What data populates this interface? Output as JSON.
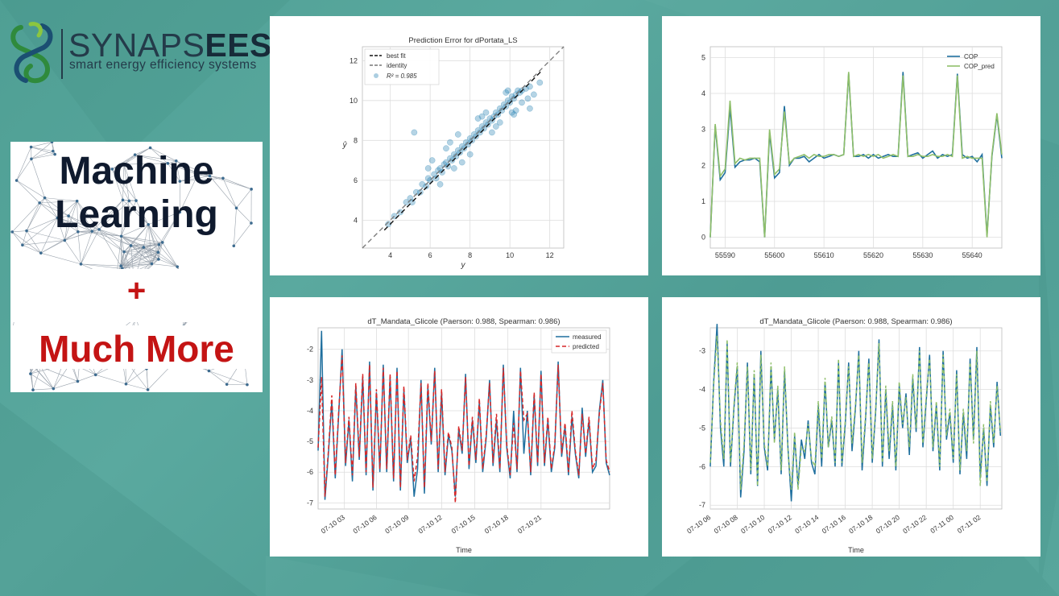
{
  "logo": {
    "brand_light": "SYNAPS",
    "brand_bold": "EES",
    "tagline": "smart energy efficiency systems"
  },
  "promo": {
    "line1": "Machine",
    "line2": "Learning",
    "plus": "+",
    "line3": "Much More"
  },
  "colors": {
    "background": "#55a39a",
    "measured": "#1f6f9e",
    "predicted": "#d62728",
    "pred_green": "#8fbf6a",
    "scatter": "#2c85b4",
    "promo_red": "#c41414"
  },
  "chart_data": [
    {
      "type": "scatter",
      "title": "Prediction Error for dPortata_LS",
      "xlabel": "y",
      "ylabel": "ŷ",
      "xlim": [
        2.6,
        12.7
      ],
      "ylim": [
        2.6,
        12.7
      ],
      "xticks": [
        "4",
        "6",
        "8",
        "10",
        "12"
      ],
      "yticks": [
        "4",
        "6",
        "8",
        "10",
        "12"
      ],
      "legend": [
        "best fit",
        "identity",
        "R² = 0.985"
      ],
      "legend_position": "top-left",
      "r2": 0.985,
      "grid": true,
      "x": [
        3.9,
        4.2,
        4.5,
        4.8,
        5.0,
        5.1,
        5.3,
        5.5,
        5.6,
        5.8,
        5.9,
        6.0,
        6.2,
        6.3,
        6.4,
        6.5,
        6.6,
        6.7,
        6.8,
        6.9,
        7.0,
        7.1,
        7.2,
        7.3,
        7.4,
        7.5,
        7.6,
        7.7,
        7.8,
        7.9,
        8.0,
        8.1,
        8.2,
        8.3,
        8.4,
        8.5,
        8.6,
        8.7,
        8.8,
        8.9,
        9.0,
        9.1,
        9.2,
        9.3,
        9.4,
        9.5,
        9.6,
        9.7,
        9.8,
        9.9,
        10.0,
        10.1,
        10.2,
        10.3,
        10.4,
        10.5,
        10.6,
        10.8,
        11.0,
        11.2,
        11.5,
        5.2,
        6.1,
        7.0,
        7.6,
        8.4,
        9.1,
        9.8,
        10.2,
        10.6,
        11.0,
        5.9,
        6.8,
        7.4,
        8.0,
        8.8,
        9.5,
        9.9,
        10.3,
        10.9,
        6.5,
        7.2,
        8.6,
        9.3,
        10.1
      ],
      "y": [
        3.8,
        4.2,
        4.4,
        4.9,
        5.1,
        4.9,
        5.4,
        5.4,
        5.8,
        5.7,
        6.1,
        6.0,
        6.3,
        6.1,
        6.5,
        6.6,
        6.4,
        6.8,
        6.9,
        6.7,
        7.1,
        7.0,
        7.3,
        7.2,
        7.5,
        7.4,
        7.7,
        7.6,
        7.9,
        7.8,
        8.1,
        8.0,
        8.3,
        8.2,
        8.5,
        8.4,
        8.7,
        8.6,
        8.9,
        8.8,
        9.1,
        9.0,
        9.2,
        9.4,
        9.3,
        9.6,
        9.5,
        9.8,
        9.7,
        10.0,
        9.9,
        10.2,
        10.1,
        10.3,
        10.5,
        10.4,
        10.5,
        10.6,
        10.7,
        10.3,
        10.9,
        8.4,
        7.0,
        7.9,
        6.9,
        9.1,
        8.4,
        10.4,
        9.3,
        9.9,
        9.6,
        6.6,
        7.6,
        8.3,
        7.3,
        9.4,
        8.9,
        10.5,
        9.5,
        10.1,
        5.8,
        6.6,
        9.2,
        8.7,
        9.4
      ]
    },
    {
      "type": "line",
      "title": "",
      "xlabel": "",
      "ylabel": "",
      "xlim": [
        55587,
        55646
      ],
      "ylim": [
        -0.3,
        5.3
      ],
      "xticks": [
        "55590",
        "55600",
        "55610",
        "55620",
        "55630",
        "55640"
      ],
      "yticks": [
        "0",
        "1",
        "2",
        "3",
        "4",
        "5"
      ],
      "legend_position": "top-right",
      "grid": true,
      "x": [
        55587,
        55588,
        55589,
        55590,
        55591,
        55592,
        55593,
        55594,
        55595,
        55596,
        55597,
        55598,
        55599,
        55600,
        55601,
        55602,
        55603,
        55604,
        55605,
        55606,
        55607,
        55608,
        55609,
        55610,
        55611,
        55612,
        55613,
        55614,
        55615,
        55616,
        55617,
        55618,
        55619,
        55620,
        55621,
        55622,
        55623,
        55624,
        55625,
        55626,
        55627,
        55628,
        55629,
        55630,
        55631,
        55632,
        55633,
        55634,
        55635,
        55636,
        55637,
        55638,
        55639,
        55640,
        55641,
        55642,
        55643,
        55644,
        55645,
        55646
      ],
      "series": [
        {
          "name": "COP",
          "values": [
            0.0,
            3.1,
            1.6,
            1.8,
            3.6,
            1.95,
            2.1,
            2.15,
            2.15,
            2.2,
            2.1,
            0.0,
            2.9,
            1.65,
            1.8,
            3.65,
            2.0,
            2.2,
            2.2,
            2.25,
            2.1,
            2.2,
            2.3,
            2.2,
            2.25,
            2.3,
            2.25,
            2.3,
            4.55,
            2.25,
            2.25,
            2.3,
            2.2,
            2.3,
            2.2,
            2.25,
            2.3,
            2.25,
            2.25,
            4.6,
            2.25,
            2.3,
            2.35,
            2.2,
            2.3,
            2.4,
            2.2,
            2.3,
            2.25,
            2.3,
            4.55,
            2.3,
            2.2,
            2.25,
            2.1,
            2.3,
            0.05,
            2.25,
            3.4,
            2.2
          ]
        },
        {
          "name": "COP_pred",
          "values": [
            0.0,
            3.15,
            1.7,
            1.9,
            3.8,
            2.05,
            2.2,
            2.15,
            2.2,
            2.2,
            2.2,
            0.0,
            3.0,
            1.75,
            1.9,
            3.5,
            2.05,
            2.2,
            2.25,
            2.3,
            2.2,
            2.3,
            2.25,
            2.25,
            2.3,
            2.3,
            2.25,
            2.3,
            4.6,
            2.25,
            2.3,
            2.25,
            2.3,
            2.25,
            2.3,
            2.2,
            2.25,
            2.3,
            2.25,
            4.5,
            2.25,
            2.25,
            2.3,
            2.25,
            2.25,
            2.3,
            2.25,
            2.25,
            2.3,
            2.25,
            4.5,
            2.2,
            2.25,
            2.2,
            2.2,
            2.2,
            0.0,
            2.3,
            3.45,
            2.3
          ]
        }
      ]
    },
    {
      "type": "line",
      "title": "dT_Mandata_Glicole (Paerson: 0.988, Spearman: 0.986)",
      "xlabel": "Time",
      "ylabel": "",
      "xlim": [
        0,
        25.5
      ],
      "ylim": [
        -7.2,
        -1.3
      ],
      "xticks": [
        "07-10 03",
        "07-10 06",
        "07-10 09",
        "07-10 12",
        "07-10 15",
        "07-10 18",
        "07-10 21"
      ],
      "yticks": [
        "-2",
        "-3",
        "-4",
        "-5",
        "-6",
        "-7"
      ],
      "legend_position": "top-right",
      "grid": true,
      "x": [
        0.0,
        0.3,
        0.6,
        0.9,
        1.2,
        1.5,
        1.8,
        2.1,
        2.4,
        2.7,
        3.0,
        3.3,
        3.6,
        3.9,
        4.2,
        4.5,
        4.8,
        5.1,
        5.4,
        5.7,
        6.0,
        6.3,
        6.6,
        6.9,
        7.2,
        7.5,
        7.8,
        8.1,
        8.4,
        8.7,
        9.0,
        9.3,
        9.6,
        9.9,
        10.2,
        10.5,
        10.8,
        11.1,
        11.4,
        11.7,
        12.0,
        12.3,
        12.6,
        12.9,
        13.2,
        13.5,
        13.8,
        14.1,
        14.4,
        14.7,
        15.0,
        15.3,
        15.6,
        15.9,
        16.2,
        16.5,
        16.8,
        17.1,
        17.4,
        17.7,
        18.0,
        18.3,
        18.6,
        18.9,
        19.2,
        19.5,
        19.8,
        20.1,
        20.4,
        20.7,
        21.0,
        21.3,
        21.6,
        21.9,
        22.2,
        22.5,
        22.8,
        23.1,
        23.4,
        23.7,
        24.0,
        24.3,
        24.6,
        24.9,
        25.2,
        25.5
      ],
      "series": [
        {
          "name": "measured",
          "values": [
            -5.3,
            -1.4,
            -6.9,
            -5.4,
            -3.7,
            -6.2,
            -4.1,
            -2.0,
            -5.8,
            -4.3,
            -6.3,
            -3.2,
            -5.6,
            -2.9,
            -6.1,
            -2.4,
            -6.6,
            -3.4,
            -6.0,
            -2.5,
            -6.0,
            -2.9,
            -6.3,
            -2.6,
            -6.6,
            -3.3,
            -5.7,
            -4.9,
            -6.8,
            -5.9,
            -3.0,
            -6.7,
            -3.2,
            -5.1,
            -2.6,
            -6.0,
            -3.4,
            -6.1,
            -4.8,
            -5.3,
            -6.8,
            -4.6,
            -5.4,
            -2.8,
            -5.9,
            -4.3,
            -5.7,
            -3.7,
            -6.0,
            -4.9,
            -3.0,
            -5.8,
            -4.3,
            -6.0,
            -2.5,
            -5.2,
            -6.2,
            -4.0,
            -6.0,
            -2.6,
            -5.4,
            -4.0,
            -6.1,
            -3.5,
            -5.8,
            -2.7,
            -5.8,
            -4.3,
            -6.0,
            -5.2,
            -2.4,
            -5.5,
            -4.5,
            -6.1,
            -4.2,
            -5.4,
            -6.2,
            -3.9,
            -5.5,
            -4.3,
            -6.0,
            -5.8,
            -4.0,
            -3.0,
            -5.7,
            -6.1
          ]
        },
        {
          "name": "predicted",
          "values": [
            -5.2,
            -2.9,
            -6.8,
            -5.3,
            -3.5,
            -6.1,
            -4.0,
            -2.2,
            -5.7,
            -4.2,
            -6.1,
            -3.1,
            -5.5,
            -2.8,
            -6.0,
            -2.5,
            -6.5,
            -3.3,
            -5.9,
            -2.6,
            -5.9,
            -2.8,
            -6.2,
            -2.7,
            -6.5,
            -3.2,
            -5.6,
            -4.8,
            -6.3,
            -5.5,
            -3.1,
            -6.5,
            -3.1,
            -5.0,
            -2.7,
            -5.9,
            -3.3,
            -6.0,
            -4.7,
            -5.2,
            -7.0,
            -4.5,
            -5.3,
            -2.9,
            -5.8,
            -4.2,
            -5.6,
            -3.6,
            -5.9,
            -4.8,
            -3.1,
            -5.7,
            -4.1,
            -5.9,
            -2.6,
            -5.1,
            -6.1,
            -4.4,
            -5.9,
            -2.7,
            -4.3,
            -4.1,
            -6.0,
            -3.4,
            -5.7,
            -2.8,
            -5.7,
            -4.2,
            -5.9,
            -5.1,
            -2.5,
            -5.4,
            -4.4,
            -6.0,
            -4.0,
            -5.3,
            -6.1,
            -4.1,
            -5.4,
            -4.2,
            -5.9,
            -5.6,
            -4.1,
            -3.1,
            -5.6,
            -6.0
          ]
        }
      ]
    },
    {
      "type": "line",
      "title": "dT_Mandata_Glicole (Paerson: 0.988, Spearman: 0.986)",
      "xlabel": "Time",
      "ylabel": "",
      "xlim": [
        0,
        21.6
      ],
      "ylim": [
        -7.1,
        -2.4
      ],
      "xticks": [
        "07-10 06",
        "07-10 08",
        "07-10 10",
        "07-10 12",
        "07-10 14",
        "07-10 16",
        "07-10 18",
        "07-10 20",
        "07-10 22",
        "07-11 00",
        "07-11 02"
      ],
      "yticks": [
        "-3",
        "-4",
        "-5",
        "-6",
        "-7"
      ],
      "grid": true,
      "x": [
        0.0,
        0.25,
        0.5,
        0.75,
        1.0,
        1.25,
        1.5,
        1.75,
        2.0,
        2.25,
        2.5,
        2.75,
        3.0,
        3.25,
        3.5,
        3.75,
        4.0,
        4.25,
        4.5,
        4.75,
        5.0,
        5.25,
        5.5,
        5.75,
        6.0,
        6.25,
        6.5,
        6.75,
        7.0,
        7.25,
        7.5,
        7.75,
        8.0,
        8.25,
        8.5,
        8.75,
        9.0,
        9.25,
        9.5,
        9.75,
        10.0,
        10.25,
        10.5,
        10.75,
        11.0,
        11.25,
        11.5,
        11.75,
        12.0,
        12.25,
        12.5,
        12.75,
        13.0,
        13.25,
        13.5,
        13.75,
        14.0,
        14.25,
        14.5,
        14.75,
        15.0,
        15.25,
        15.5,
        15.75,
        16.0,
        16.25,
        16.5,
        16.75,
        17.0,
        17.25,
        17.5,
        17.75,
        18.0,
        18.25,
        18.5,
        18.75,
        19.0,
        19.25,
        19.5,
        19.75,
        20.0,
        20.25,
        20.5,
        20.75,
        21.0,
        21.25,
        21.5
      ],
      "series": [
        {
          "name": "",
          "values": [
            -6.0,
            -3.8,
            -2.3,
            -5.0,
            -6.0,
            -2.8,
            -6.0,
            -4.5,
            -3.4,
            -6.8,
            -5.6,
            -3.3,
            -6.2,
            -3.6,
            -6.5,
            -3.0,
            -5.5,
            -6.1,
            -3.4,
            -5.3,
            -4.0,
            -6.2,
            -3.5,
            -5.5,
            -6.9,
            -5.2,
            -6.5,
            -5.3,
            -5.8,
            -4.8,
            -5.9,
            -6.2,
            -4.4,
            -6.0,
            -3.8,
            -5.5,
            -4.8,
            -6.0,
            -3.3,
            -6.0,
            -4.9,
            -3.3,
            -5.6,
            -4.5,
            -3.0,
            -6.1,
            -4.8,
            -3.2,
            -5.9,
            -4.6,
            -2.7,
            -6.0,
            -4.0,
            -5.8,
            -4.4,
            -6.1,
            -3.9,
            -5.0,
            -4.1,
            -5.7,
            -3.7,
            -5.1,
            -2.9,
            -5.5,
            -4.3,
            -3.1,
            -5.6,
            -4.4,
            -6.1,
            -3.0,
            -5.3,
            -4.6,
            -5.9,
            -3.5,
            -6.2,
            -4.6,
            -5.8,
            -3.2,
            -5.3,
            -2.9,
            -6.3,
            -5.0,
            -6.5,
            -4.4,
            -5.5,
            -3.8,
            -5.2
          ]
        },
        {
          "name": "",
          "values": [
            -5.9,
            -3.9,
            -2.6,
            -4.8,
            -5.8,
            -2.7,
            -5.9,
            -4.4,
            -3.3,
            -6.6,
            -5.4,
            -3.4,
            -6.1,
            -3.5,
            -6.5,
            -3.1,
            -5.4,
            -6.0,
            -3.3,
            -5.4,
            -3.9,
            -6.1,
            -3.4,
            -5.6,
            -6.6,
            -5.1,
            -6.6,
            -5.5,
            -5.6,
            -4.9,
            -5.8,
            -6.0,
            -4.3,
            -5.8,
            -3.7,
            -5.5,
            -4.7,
            -5.9,
            -3.2,
            -5.9,
            -4.8,
            -3.4,
            -5.4,
            -4.4,
            -3.1,
            -5.9,
            -4.7,
            -3.3,
            -5.8,
            -4.5,
            -2.8,
            -5.9,
            -3.9,
            -5.6,
            -4.3,
            -6.0,
            -3.8,
            -4.9,
            -4.2,
            -5.5,
            -3.6,
            -5.0,
            -3.0,
            -5.4,
            -4.2,
            -3.2,
            -5.5,
            -4.3,
            -6.0,
            -3.1,
            -5.2,
            -4.5,
            -5.8,
            -3.6,
            -6.1,
            -4.5,
            -5.6,
            -3.3,
            -5.4,
            -3.0,
            -6.5,
            -4.9,
            -6.4,
            -4.3,
            -5.4,
            -3.9,
            -5.1
          ]
        }
      ]
    }
  ]
}
